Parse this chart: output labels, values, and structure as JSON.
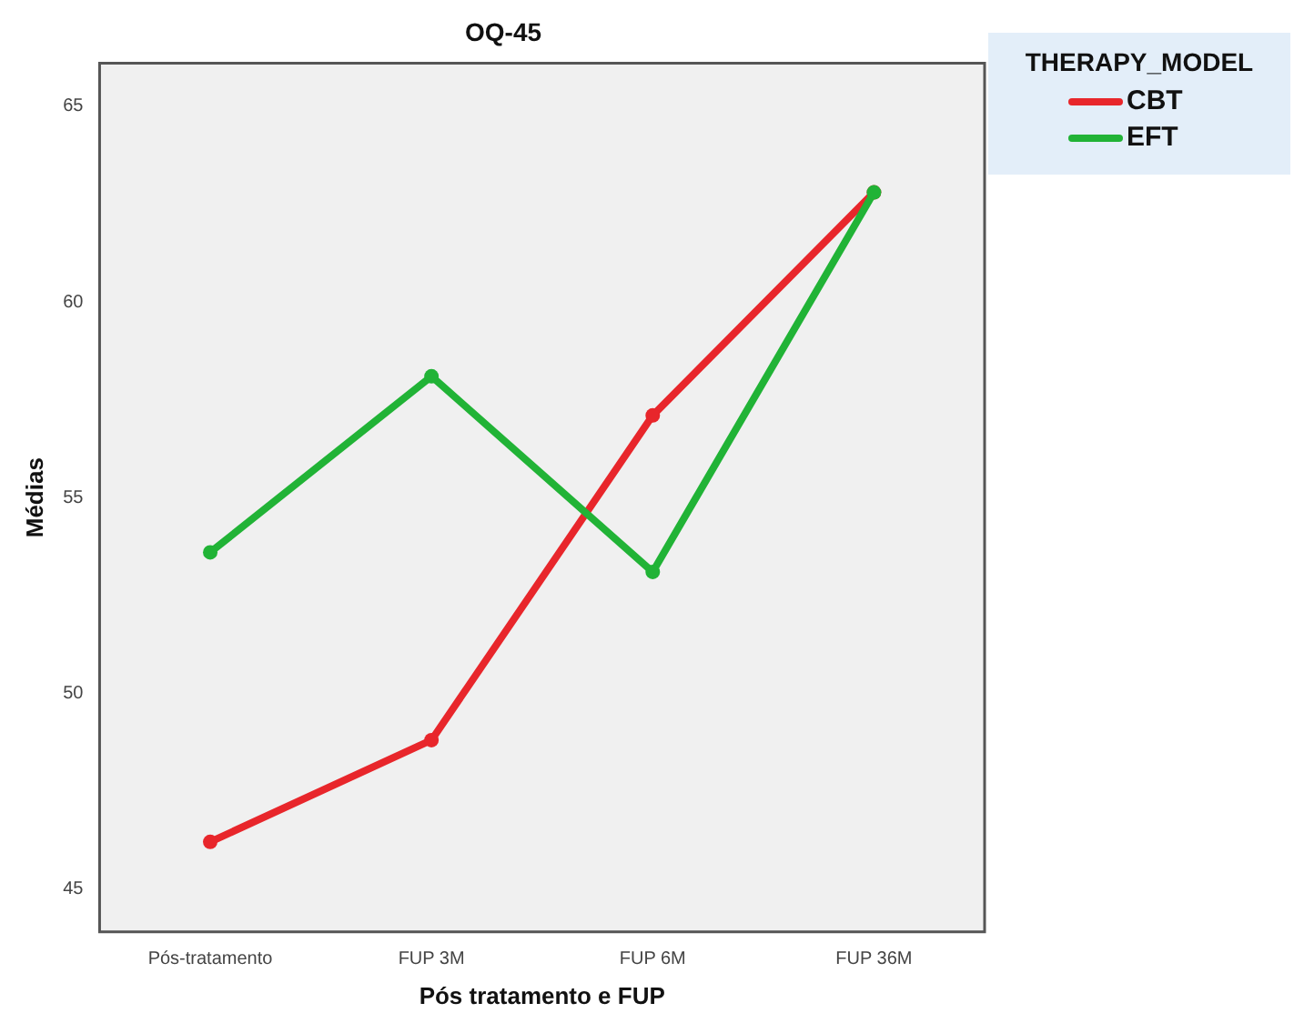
{
  "chart_data": {
    "type": "line",
    "title": "OQ-45",
    "xlabel": "Pós tratamento e FUP",
    "ylabel": "Médias",
    "legend_title": "THERAPY_MODEL",
    "categories": [
      "Pós-tratamento",
      "FUP 3M",
      "FUP 6M",
      "FUP 36M"
    ],
    "series": [
      {
        "name": "CBT",
        "color": "#e8262b",
        "values": [
          46.2,
          48.8,
          57.1,
          62.8
        ]
      },
      {
        "name": "EFT",
        "color": "#21b336",
        "values": [
          53.6,
          58.1,
          53.1,
          62.8
        ]
      }
    ],
    "ylim": [
      43.9,
      66.1
    ],
    "yticks": [
      45,
      50,
      55,
      60,
      65
    ],
    "grid": false,
    "legend": "right",
    "marker": "circle",
    "line_style": "solid"
  }
}
